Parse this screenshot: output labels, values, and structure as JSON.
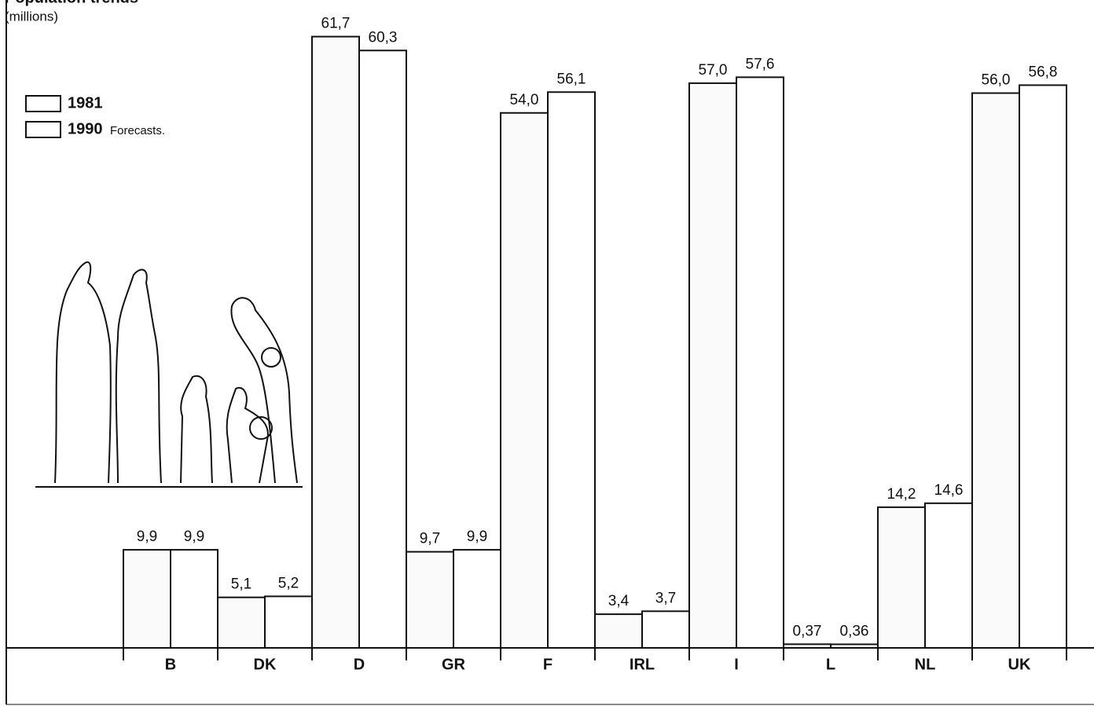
{
  "chart_data": {
    "type": "bar",
    "title": "Population trends",
    "subtitle": "(millions)",
    "categories": [
      "B",
      "DK",
      "D",
      "GR",
      "F",
      "IRL",
      "I",
      "L",
      "NL",
      "UK"
    ],
    "series": [
      {
        "name": "1981",
        "color": "#fafafa",
        "values": [
          9.9,
          5.1,
          61.7,
          9.7,
          54.0,
          3.4,
          57.0,
          0.37,
          14.2,
          56.0
        ],
        "value_labels": [
          "9,9",
          "5,1",
          "61,7",
          "9,7",
          "54,0",
          "3,4",
          "57,0",
          "0,37",
          "14,2",
          "56,0"
        ]
      },
      {
        "name": "1990",
        "color": "#ffffff",
        "values": [
          9.9,
          5.2,
          60.3,
          9.9,
          56.1,
          3.7,
          57.6,
          0.36,
          14.6,
          56.8
        ],
        "value_labels": [
          "9,9",
          "5,2",
          "60,3",
          "9,9",
          "56,1",
          "3,7",
          "57,6",
          "0,36",
          "14,6",
          "56,8"
        ]
      }
    ],
    "legend_note": "Forecasts.",
    "ylim": [
      0,
      65
    ]
  }
}
